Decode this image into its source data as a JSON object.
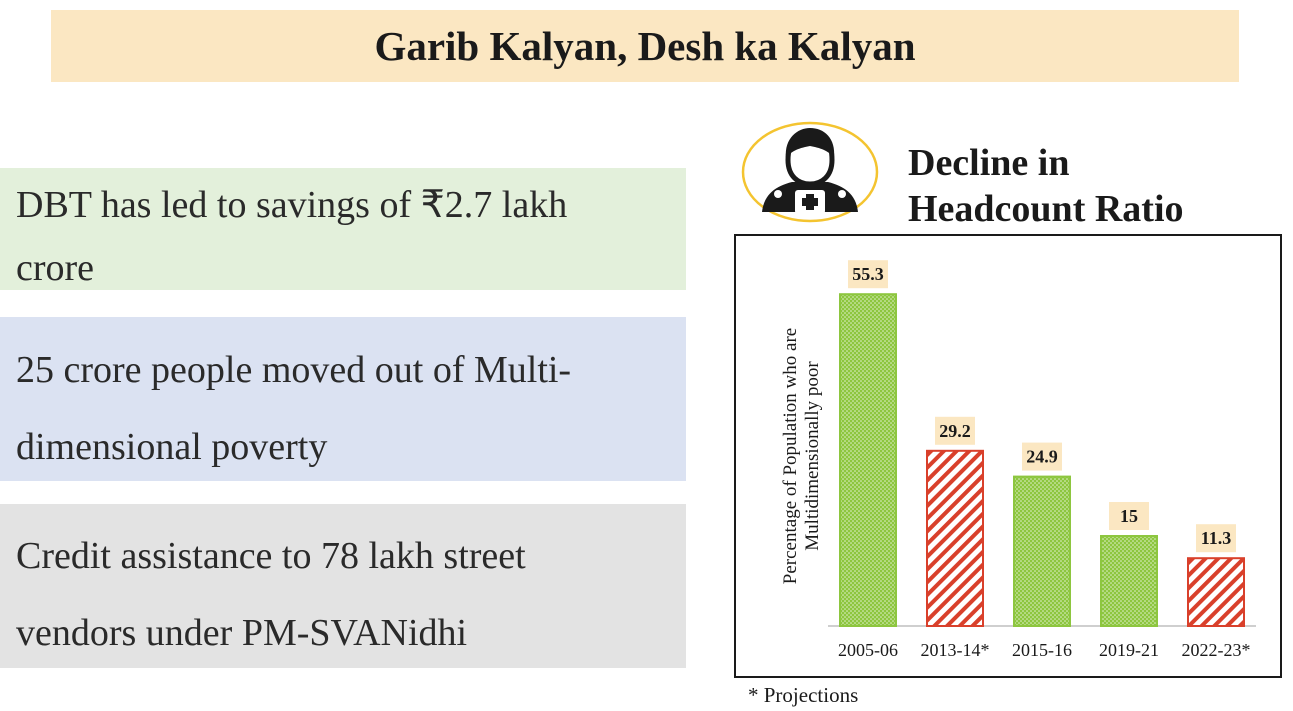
{
  "title": "Garib Kalyan, Desh ka Kalyan",
  "cards": [
    {
      "line1": "DBT has led to savings of ₹2.7 lakh",
      "line2": "crore"
    },
    {
      "line1": "25 crore people moved out of Multi-",
      "line2": "dimensional poverty"
    },
    {
      "line1": "Credit assistance to 78 lakh street",
      "line2": "vendors under PM-SVANidhi"
    }
  ],
  "chart_heading": {
    "line1": "Decline in",
    "line2": "Headcount Ratio"
  },
  "footnote": "* Projections",
  "icon": {
    "name": "doctor-icon",
    "ring_color": "#f4c430"
  },
  "colors": {
    "green": "#8dc63f",
    "red": "#d9402b",
    "label_bg": "#fbe7c2"
  },
  "chart_data": {
    "type": "bar",
    "title": "",
    "xlabel": "",
    "ylabel_lines": [
      "Percentage of Population who are",
      "Multidimensionally poor"
    ],
    "categories": [
      "2005-06",
      "2013-14*",
      "2015-16",
      "2019-21",
      "2022-23*"
    ],
    "values": [
      55.3,
      29.2,
      24.9,
      15,
      11.3
    ],
    "value_labels": [
      "55.3",
      "29.2",
      "24.9",
      "15",
      "11.3"
    ],
    "bar_styles": [
      "green-dotted",
      "red-hatched",
      "green-dotted",
      "green-dotted",
      "red-hatched"
    ],
    "ylim": [
      0,
      60
    ],
    "grid": false,
    "legend": "none"
  }
}
